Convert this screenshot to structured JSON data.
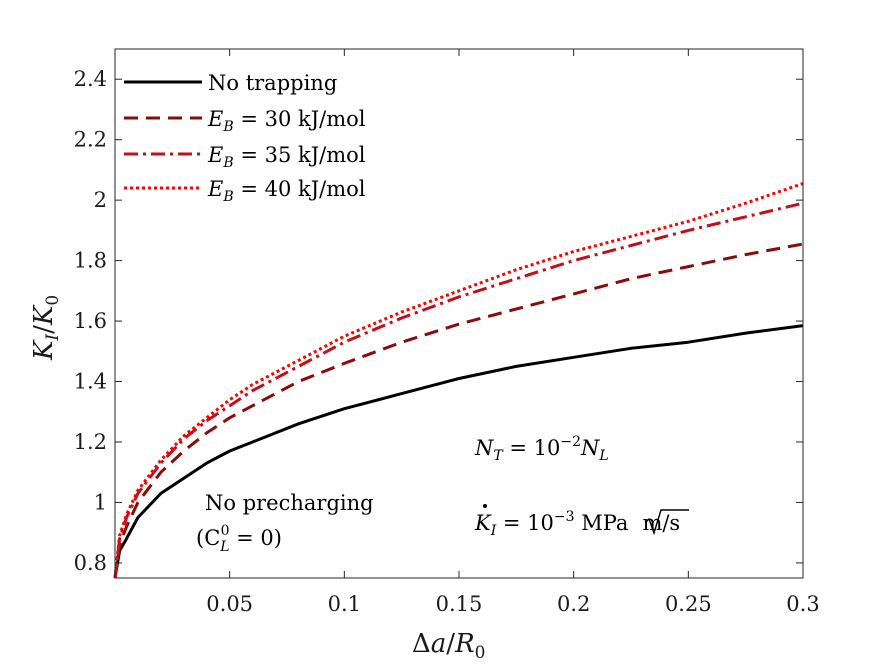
{
  "chart_data": {
    "type": "line",
    "xlabel": "Δa/R0",
    "ylabel": "KI/K0",
    "xlim": [
      0,
      0.3
    ],
    "ylim": [
      0.75,
      2.5
    ],
    "xticks": [
      0.05,
      0.1,
      0.15,
      0.2,
      0.25,
      0.3
    ],
    "xtick_labels": [
      "0.05",
      "0.1",
      "0.15",
      "0.2",
      "0.25",
      "0.3"
    ],
    "yticks": [
      0.8,
      1,
      1.2,
      1.4,
      1.6,
      1.8,
      2,
      2.2,
      2.4
    ],
    "ytick_labels": [
      "0.8",
      "1",
      "1.2",
      "1.4",
      "1.6",
      "1.8",
      "2",
      "2.2",
      "2.4"
    ],
    "x": [
      0,
      0.002,
      0.005,
      0.01,
      0.02,
      0.03,
      0.04,
      0.05,
      0.06,
      0.08,
      0.1,
      0.125,
      0.15,
      0.175,
      0.2,
      0.225,
      0.25,
      0.275,
      0.3
    ],
    "series": [
      {
        "name": "No trapping",
        "color": "#000000",
        "dash": "solid",
        "values": [
          0.75,
          0.84,
          0.88,
          0.95,
          1.03,
          1.08,
          1.13,
          1.17,
          1.2,
          1.26,
          1.31,
          1.36,
          1.41,
          1.45,
          1.48,
          1.51,
          1.53,
          1.56,
          1.585
        ]
      },
      {
        "name": "E_B = 30 kJ/mol",
        "color": "#8b0a0a",
        "dash": "dashed",
        "values": [
          0.75,
          0.86,
          0.92,
          1.0,
          1.1,
          1.17,
          1.23,
          1.28,
          1.32,
          1.4,
          1.46,
          1.53,
          1.59,
          1.64,
          1.69,
          1.74,
          1.78,
          1.82,
          1.855
        ]
      },
      {
        "name": "E_B = 35 kJ/mol",
        "color": "#c0101a",
        "dash": "dashdot",
        "values": [
          0.75,
          0.88,
          0.95,
          1.03,
          1.13,
          1.21,
          1.27,
          1.32,
          1.37,
          1.45,
          1.53,
          1.61,
          1.68,
          1.74,
          1.8,
          1.85,
          1.9,
          1.945,
          1.99
        ]
      },
      {
        "name": "E_B = 40 kJ/mol",
        "color": "#ff0000",
        "dash": "dotted",
        "values": [
          0.75,
          0.89,
          0.96,
          1.04,
          1.14,
          1.22,
          1.28,
          1.34,
          1.39,
          1.47,
          1.55,
          1.63,
          1.7,
          1.77,
          1.83,
          1.88,
          1.93,
          1.99,
          2.055
        ]
      }
    ],
    "legend": {
      "placement": "top-left",
      "entries": [
        {
          "prefix": "",
          "suffix": "No trapping"
        },
        {
          "prefix": "E",
          "sub": "B",
          "suffix": " = 30 kJ/mol"
        },
        {
          "prefix": "E",
          "sub": "B",
          "suffix": " = 35 kJ/mol"
        },
        {
          "prefix": "E",
          "sub": "B",
          "suffix": " = 40 kJ/mol"
        }
      ]
    },
    "annotations": {
      "precharge_line1": "No precharging",
      "precharge_line2_pre": "(C",
      "precharge_line2_sub": "L",
      "precharge_line2_sup": "0",
      "precharge_line2_post": " = 0)",
      "nt_lhs": "N",
      "nt_lhs_sub": "T",
      "nt_eq": " = 10",
      "nt_exp": "−2",
      "nt_rhs": "N",
      "nt_rhs_sub": "L",
      "kdot_lhs": "K",
      "kdot_sub": "I",
      "kdot_eq": " = 10",
      "kdot_exp": "−3",
      "kdot_unit1": " MPa",
      "kdot_unit_root": "m",
      "kdot_unit2": "/s"
    },
    "axis_text": {
      "x_delta": "Δ",
      "x_a": "a",
      "x_slash": "/",
      "x_R": "R",
      "x_R_sub": "0",
      "y_K": "K",
      "y_K_sub": "I",
      "y_slash": "/",
      "y_K0": "K",
      "y_K0_sub": "0"
    }
  }
}
